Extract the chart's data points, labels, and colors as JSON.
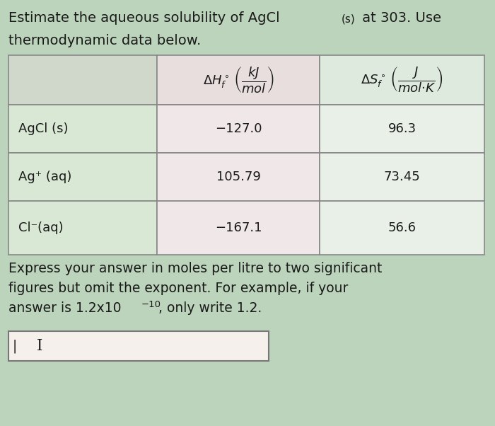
{
  "bg_color": "#bdd4bc",
  "table_bg_col1": "#d8e8d4",
  "table_bg_col2": "#f0e8e8",
  "table_bg_col3": "#e8f0e8",
  "header_bg_col1": "#d0d8cc",
  "header_bg_col2": "#e8dede",
  "header_bg_col3": "#deeade",
  "input_bg": "#f0ece8",
  "border_color": "#888888",
  "text_color": "#1a1a1a",
  "rows": [
    {
      "species": "AgCl (s)",
      "dH": "−127.0",
      "dS": "96.3"
    },
    {
      "species": "Ag⁺ (aq)",
      "dH": "105.79",
      "dS": "73.45"
    },
    {
      "species": "Cl⁻(aq)",
      "dH": "−167.1",
      "dS": "56.6"
    }
  ],
  "font_size_title": 14,
  "font_size_table": 13,
  "font_size_header": 12,
  "font_size_footer": 13.5,
  "title1": "Estimate the aqueous solubility of AgCl",
  "title1_sub": "(s)",
  "title1_end": " at 303. Use",
  "title2": "thermodynamic data below.",
  "footer1": "Express your answer in moles per litre to two significant",
  "footer2": "figures but omit the exponent. For example, if your",
  "footer3_a": "answer is 1.2x10",
  "footer3_exp": "−10",
  "footer3_b": ", only write 1.2."
}
